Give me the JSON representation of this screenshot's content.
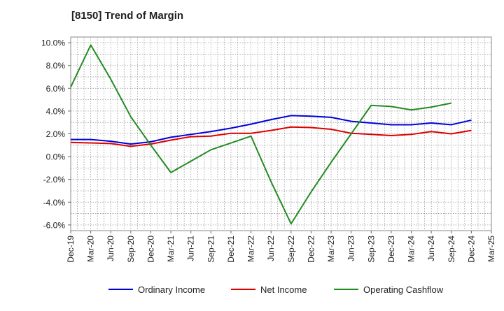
{
  "chart_data": {
    "type": "line",
    "title": "[8150]  Trend of Margin",
    "xlabel": "",
    "ylabel": "",
    "ylim": [
      -6.5,
      10.5
    ],
    "y_ticks": [
      "10.0%",
      "8.0%",
      "6.0%",
      "4.0%",
      "2.0%",
      "0.0%",
      "-2.0%",
      "-4.0%",
      "-6.0%"
    ],
    "y_tick_values": [
      10,
      8,
      6,
      4,
      2,
      0,
      -2,
      -4,
      -6
    ],
    "x_labels": [
      "Dec-19",
      "Mar-20",
      "Jun-20",
      "Sep-20",
      "Dec-20",
      "Mar-21",
      "Jun-21",
      "Sep-21",
      "Dec-21",
      "Mar-22",
      "Jun-22",
      "Sep-22",
      "Dec-22",
      "Mar-23",
      "Jun-23",
      "Sep-23",
      "Dec-23",
      "Mar-24",
      "Jun-24",
      "Sep-24",
      "Dec-24",
      "Mar-25"
    ],
    "grid": true,
    "legend_position": "bottom",
    "series": [
      {
        "name": "Ordinary Income",
        "color": "#0000dd",
        "values": [
          1.5,
          1.5,
          1.35,
          1.1,
          1.3,
          1.7,
          1.95,
          2.2,
          2.5,
          2.85,
          3.25,
          3.6,
          3.55,
          3.45,
          3.1,
          2.95,
          2.8,
          2.8,
          2.95,
          2.8,
          3.2,
          null
        ]
      },
      {
        "name": "Net Income",
        "color": "#dd0000",
        "values": [
          1.25,
          1.2,
          1.15,
          0.9,
          1.1,
          1.45,
          1.75,
          1.8,
          2.05,
          2.05,
          2.3,
          2.6,
          2.55,
          2.4,
          2.05,
          1.95,
          1.85,
          1.95,
          2.2,
          2.0,
          2.3,
          null
        ]
      },
      {
        "name": "Operating Cashflow",
        "color": "#228b22",
        "values": [
          6.1,
          9.8,
          6.8,
          3.5,
          1.0,
          -1.4,
          -0.4,
          0.6,
          1.2,
          1.8,
          -2.2,
          -5.9,
          -3.1,
          -0.5,
          2.0,
          4.5,
          4.4,
          4.1,
          4.35,
          4.7,
          null,
          null
        ]
      }
    ]
  }
}
